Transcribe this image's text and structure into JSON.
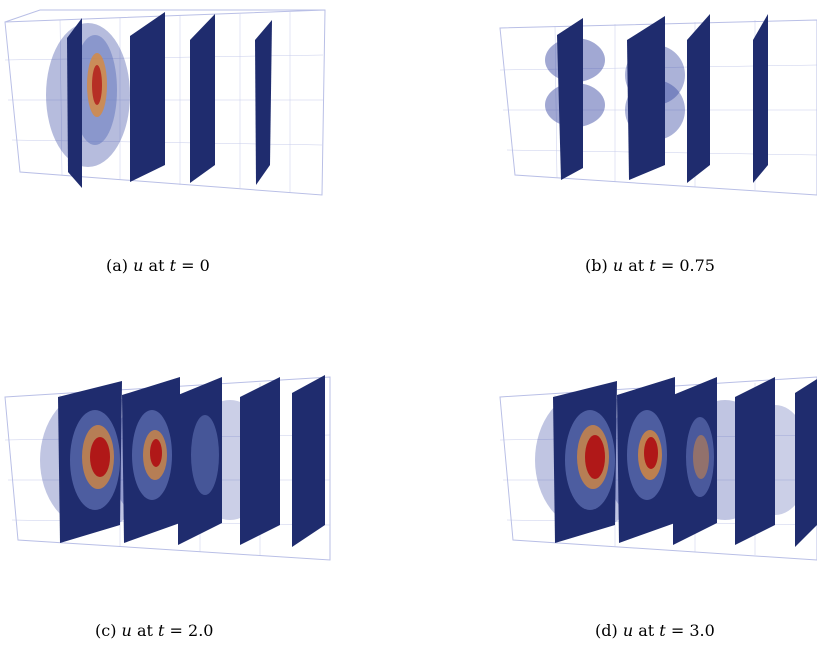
{
  "figures": [
    {
      "id": "a",
      "label": "(a)",
      "var": "u",
      "at": "at",
      "tvar": "t",
      "eq": "= 0"
    },
    {
      "id": "b",
      "label": "(b)",
      "var": "u",
      "at": "at",
      "tvar": "t",
      "eq": "= 0.75"
    },
    {
      "id": "c",
      "label": "(c)",
      "var": "u",
      "at": "at",
      "tvar": "t",
      "eq": "= 2.0"
    },
    {
      "id": "d",
      "label": "(d)",
      "var": "u",
      "at": "at",
      "tvar": "t",
      "eq": "= 3.0"
    }
  ],
  "colors": {
    "slice": "#1f2c6e",
    "grid": "#b9bfe6",
    "particle": "#2e3f9e",
    "hot": "#b01818",
    "warm": "#d98a3c",
    "cool": "#6d7fc2"
  }
}
